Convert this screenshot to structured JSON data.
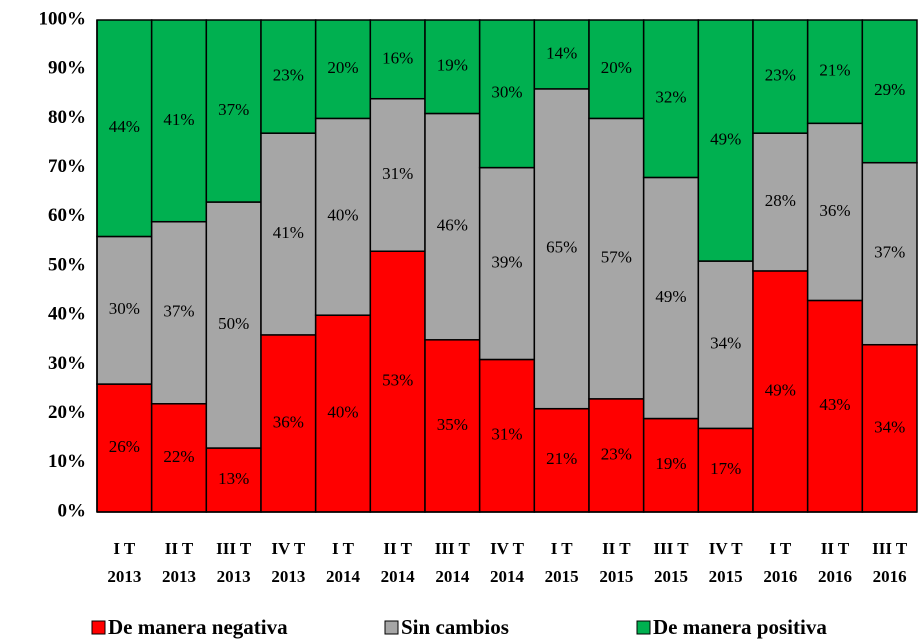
{
  "chart_data": {
    "type": "stacked_bar",
    "categories": [
      [
        "I T",
        "2013"
      ],
      [
        "II T",
        "2013"
      ],
      [
        "III T",
        "2013"
      ],
      [
        "IV T",
        "2013"
      ],
      [
        "I T",
        "2014"
      ],
      [
        "II T",
        "2014"
      ],
      [
        "III T",
        "2014"
      ],
      [
        "IV T",
        "2014"
      ],
      [
        "I T",
        "2015"
      ],
      [
        "II T",
        "2015"
      ],
      [
        "III T",
        "2015"
      ],
      [
        "IV T",
        "2015"
      ],
      [
        "I T",
        "2016"
      ],
      [
        "II T",
        "2016"
      ],
      [
        "III T",
        "2016"
      ]
    ],
    "series": [
      {
        "name": "De manera negativa",
        "color": "#ff0000",
        "values": [
          26,
          22,
          13,
          36,
          40,
          53,
          35,
          31,
          21,
          23,
          19,
          17,
          49,
          43,
          34
        ],
        "value_labels": [
          "26%",
          "22%",
          "13%",
          "36%",
          "40%",
          "53%",
          "35%",
          "31%",
          "21%",
          "23%",
          "19%",
          "17%",
          "49%",
          "43%",
          "34%"
        ]
      },
      {
        "name": "Sin cambios",
        "color": "#a6a6a6",
        "values": [
          30,
          37,
          50,
          41,
          40,
          31,
          46,
          39,
          65,
          57,
          49,
          34,
          28,
          36,
          37
        ],
        "value_labels": [
          "30%",
          "37%",
          "50%",
          "41%",
          "40%",
          "31%",
          "46%",
          "39%",
          "65%",
          "57%",
          "49%",
          "34%",
          "28%",
          "36%",
          "37%"
        ]
      },
      {
        "name": "De manera positiva",
        "color": "#00b050",
        "values": [
          44,
          41,
          37,
          23,
          20,
          16,
          19,
          30,
          14,
          20,
          32,
          49,
          23,
          21,
          29
        ],
        "value_labels": [
          "44%",
          "41%",
          "37%",
          "23%",
          "20%",
          "16%",
          "19%",
          "30%",
          "14%",
          "20%",
          "32%",
          "49%",
          "23%",
          "21%",
          "29%"
        ]
      }
    ],
    "ylim": [
      0,
      100
    ],
    "yticks": [
      {
        "value": 0,
        "label": "0%"
      },
      {
        "value": 10,
        "label": "10%"
      },
      {
        "value": 20,
        "label": "20%"
      },
      {
        "value": 30,
        "label": "30%"
      },
      {
        "value": 40,
        "label": "40%"
      },
      {
        "value": 50,
        "label": "50%"
      },
      {
        "value": 60,
        "label": "60%"
      },
      {
        "value": 70,
        "label": "70%"
      },
      {
        "value": 80,
        "label": "80%"
      },
      {
        "value": 90,
        "label": "90%"
      },
      {
        "value": 100,
        "label": "100%"
      }
    ],
    "legend": "bottom"
  }
}
